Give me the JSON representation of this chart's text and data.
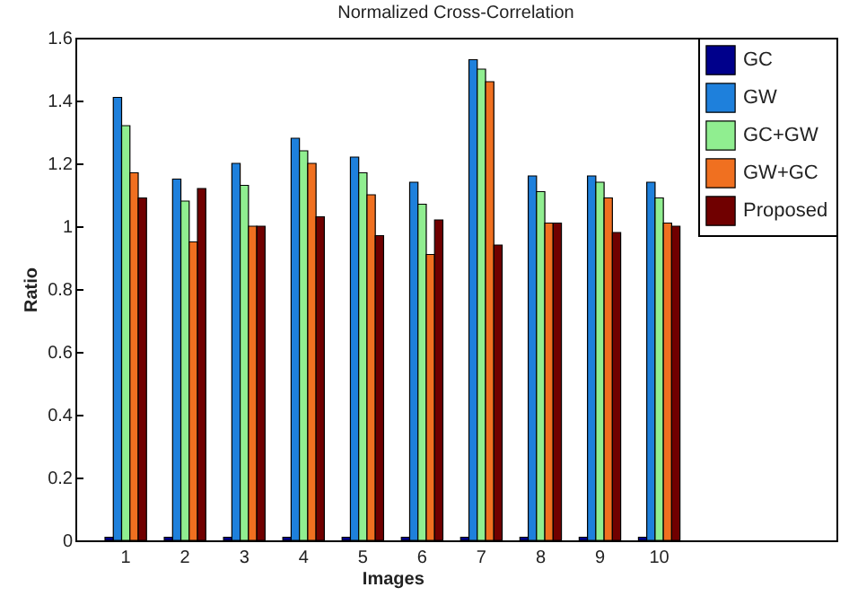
{
  "chart_data": {
    "type": "bar",
    "title": "Normalized Cross-Correlation",
    "xlabel": "Images",
    "ylabel": "Ratio",
    "categories": [
      "1",
      "2",
      "3",
      "4",
      "5",
      "6",
      "7",
      "8",
      "9",
      "10"
    ],
    "series": [
      {
        "name": "GC",
        "color": "#00008b",
        "values": [
          0.01,
          0.01,
          0.01,
          0.01,
          0.01,
          0.01,
          0.01,
          0.01,
          0.01,
          0.01
        ]
      },
      {
        "name": "GW",
        "color": "#1e80dc",
        "values": [
          1.41,
          1.15,
          1.2,
          1.28,
          1.22,
          1.14,
          1.53,
          1.16,
          1.16,
          1.14
        ]
      },
      {
        "name": "GC+GW",
        "color": "#90ee90",
        "values": [
          1.32,
          1.08,
          1.13,
          1.24,
          1.17,
          1.07,
          1.5,
          1.11,
          1.14,
          1.09
        ]
      },
      {
        "name": "GW+GC",
        "color": "#f07020",
        "values": [
          1.17,
          0.95,
          1.0,
          1.2,
          1.1,
          0.91,
          1.46,
          1.01,
          1.09,
          1.01
        ]
      },
      {
        "name": "Proposed",
        "color": "#700000",
        "values": [
          1.09,
          1.12,
          1.0,
          1.03,
          0.97,
          1.02,
          0.94,
          1.01,
          0.98,
          1.0
        ]
      }
    ],
    "ylim": [
      0,
      1.6
    ],
    "yticks": [
      0,
      0.2,
      0.4,
      0.6,
      0.8,
      1,
      1.2,
      1.4,
      1.6
    ],
    "grid": false,
    "legend": "top right"
  }
}
